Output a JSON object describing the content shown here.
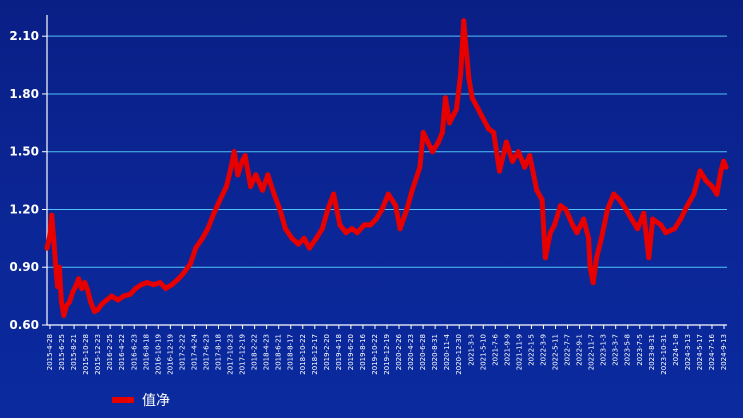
{
  "chart_data": {
    "type": "line",
    "series": [
      {
        "name": "值净",
        "color": "#e60000",
        "points": [
          [
            "2015-04-28",
            1.0
          ],
          [
            "2015-05-10",
            1.05
          ],
          [
            "2015-05-22",
            1.17
          ],
          [
            "2015-06-01",
            1.05
          ],
          [
            "2015-06-10",
            0.92
          ],
          [
            "2015-06-20",
            0.8
          ],
          [
            "2015-06-30",
            0.9
          ],
          [
            "2015-07-10",
            0.72
          ],
          [
            "2015-07-22",
            0.65
          ],
          [
            "2015-08-05",
            0.7
          ],
          [
            "2015-08-20",
            0.72
          ],
          [
            "2015-09-05",
            0.77
          ],
          [
            "2015-09-20",
            0.8
          ],
          [
            "2015-10-05",
            0.84
          ],
          [
            "2015-10-20",
            0.79
          ],
          [
            "2015-11-05",
            0.82
          ],
          [
            "2015-11-20",
            0.78
          ],
          [
            "2015-12-05",
            0.72
          ],
          [
            "2015-12-25",
            0.67
          ],
          [
            "2016-01-10",
            0.68
          ],
          [
            "2016-02-01",
            0.71
          ],
          [
            "2016-02-25",
            0.73
          ],
          [
            "2016-03-20",
            0.75
          ],
          [
            "2016-04-22",
            0.73
          ],
          [
            "2016-05-20",
            0.75
          ],
          [
            "2016-06-23",
            0.76
          ],
          [
            "2016-07-20",
            0.79
          ],
          [
            "2016-08-18",
            0.81
          ],
          [
            "2016-09-15",
            0.82
          ],
          [
            "2016-10-19",
            0.81
          ],
          [
            "2016-11-20",
            0.82
          ],
          [
            "2016-12-19",
            0.79
          ],
          [
            "2017-01-20",
            0.81
          ],
          [
            "2017-02-22",
            0.84
          ],
          [
            "2017-03-20",
            0.87
          ],
          [
            "2017-04-24",
            0.92
          ],
          [
            "2017-05-20",
            1.0
          ],
          [
            "2017-06-23",
            1.05
          ],
          [
            "2017-07-20",
            1.1
          ],
          [
            "2017-08-20",
            1.18
          ],
          [
            "2017-09-20",
            1.25
          ],
          [
            "2017-10-23",
            1.32
          ],
          [
            "2017-11-15",
            1.42
          ],
          [
            "2017-12-01",
            1.5
          ],
          [
            "2017-12-19",
            1.38
          ],
          [
            "2018-01-10",
            1.45
          ],
          [
            "2018-01-25",
            1.48
          ],
          [
            "2018-02-22",
            1.32
          ],
          [
            "2018-03-20",
            1.38
          ],
          [
            "2018-04-23",
            1.3
          ],
          [
            "2018-05-20",
            1.38
          ],
          [
            "2018-06-21",
            1.28
          ],
          [
            "2018-07-20",
            1.2
          ],
          [
            "2018-08-17",
            1.1
          ],
          [
            "2018-09-20",
            1.05
          ],
          [
            "2018-10-22",
            1.02
          ],
          [
            "2018-11-20",
            1.05
          ],
          [
            "2018-12-17",
            1.0
          ],
          [
            "2019-01-20",
            1.05
          ],
          [
            "2019-02-20",
            1.1
          ],
          [
            "2019-03-20",
            1.2
          ],
          [
            "2019-04-18",
            1.28
          ],
          [
            "2019-05-20",
            1.12
          ],
          [
            "2019-06-20",
            1.08
          ],
          [
            "2019-07-20",
            1.1
          ],
          [
            "2019-08-16",
            1.08
          ],
          [
            "2019-09-20",
            1.12
          ],
          [
            "2019-10-22",
            1.12
          ],
          [
            "2019-11-20",
            1.15
          ],
          [
            "2019-12-19",
            1.2
          ],
          [
            "2020-01-20",
            1.28
          ],
          [
            "2020-02-26",
            1.22
          ],
          [
            "2020-03-20",
            1.1
          ],
          [
            "2020-04-23",
            1.2
          ],
          [
            "2020-05-20",
            1.3
          ],
          [
            "2020-06-28",
            1.42
          ],
          [
            "2020-07-15",
            1.6
          ],
          [
            "2020-08-31",
            1.5
          ],
          [
            "2020-09-30",
            1.55
          ],
          [
            "2020-10-20",
            1.6
          ],
          [
            "2020-11-04",
            1.78
          ],
          [
            "2020-11-25",
            1.65
          ],
          [
            "2020-12-30",
            1.72
          ],
          [
            "2021-01-20",
            1.9
          ],
          [
            "2021-02-05",
            2.18
          ],
          [
            "2021-02-20",
            2.0
          ],
          [
            "2021-03-03",
            1.88
          ],
          [
            "2021-03-20",
            1.78
          ],
          [
            "2021-04-20",
            1.72
          ],
          [
            "2021-05-10",
            1.68
          ],
          [
            "2021-06-10",
            1.62
          ],
          [
            "2021-07-06",
            1.6
          ],
          [
            "2021-08-05",
            1.4
          ],
          [
            "2021-09-09",
            1.55
          ],
          [
            "2021-10-10",
            1.45
          ],
          [
            "2021-11-09",
            1.5
          ],
          [
            "2021-12-10",
            1.42
          ],
          [
            "2022-01-05",
            1.48
          ],
          [
            "2022-02-10",
            1.3
          ],
          [
            "2022-03-09",
            1.25
          ],
          [
            "2022-03-25",
            0.95
          ],
          [
            "2022-04-20",
            1.08
          ],
          [
            "2022-05-11",
            1.12
          ],
          [
            "2022-06-10",
            1.22
          ],
          [
            "2022-07-07",
            1.2
          ],
          [
            "2022-08-10",
            1.12
          ],
          [
            "2022-09-01",
            1.08
          ],
          [
            "2022-10-05",
            1.15
          ],
          [
            "2022-10-30",
            1.05
          ],
          [
            "2022-11-07",
            0.9
          ],
          [
            "2022-11-22",
            0.82
          ],
          [
            "2022-12-10",
            0.95
          ],
          [
            "2023-01-03",
            1.05
          ],
          [
            "2023-02-03",
            1.2
          ],
          [
            "2023-03-07",
            1.28
          ],
          [
            "2023-04-05",
            1.25
          ],
          [
            "2023-05-08",
            1.2
          ],
          [
            "2023-06-05",
            1.15
          ],
          [
            "2023-07-05",
            1.1
          ],
          [
            "2023-08-05",
            1.18
          ],
          [
            "2023-08-31",
            0.95
          ],
          [
            "2023-09-20",
            1.15
          ],
          [
            "2023-10-31",
            1.12
          ],
          [
            "2023-11-25",
            1.08
          ],
          [
            "2024-01-08",
            1.1
          ],
          [
            "2024-02-08",
            1.15
          ],
          [
            "2024-03-13",
            1.22
          ],
          [
            "2024-04-15",
            1.28
          ],
          [
            "2024-05-17",
            1.4
          ],
          [
            "2024-06-15",
            1.35
          ],
          [
            "2024-07-16",
            1.32
          ],
          [
            "2024-08-10",
            1.28
          ],
          [
            "2024-08-30",
            1.4
          ],
          [
            "2024-09-13",
            1.45
          ],
          [
            "2024-09-25",
            1.42
          ]
        ]
      }
    ],
    "y_ticks": [
      "0.60",
      "0.90",
      "1.20",
      "1.50",
      "1.80",
      "2.10"
    ],
    "ylim": [
      0.6,
      2.21
    ],
    "xlim": [
      "2015-04-28",
      "2024-09-30"
    ],
    "x_ticks": [
      "2015-4-28",
      "2015-6-25",
      "2015-8-21",
      "2015-10-28",
      "2015-12-23",
      "2016-2-25",
      "2016-4-22",
      "2016-6-23",
      "2016-8-18",
      "2016-10-19",
      "2016-12-19",
      "2017-2-22",
      "2017-4-24",
      "2017-6-23",
      "2017-8-18",
      "2017-10-23",
      "2017-12-19",
      "2018-2-22",
      "2018-4-23",
      "2018-6-21",
      "2018-8-17",
      "2018-10-22",
      "2018-12-17",
      "2019-2-20",
      "2019-4-18",
      "2019-6-20",
      "2019-8-16",
      "2019-10-22",
      "2019-12-19",
      "2020-2-26",
      "2020-4-23",
      "2020-6-28",
      "2020-8-31",
      "2020-11-4",
      "2020-12-30",
      "2021-3-3",
      "2021-5-10",
      "2021-7-6",
      "2021-9-9",
      "2021-11-9",
      "2022-1-5",
      "2022-3-9",
      "2022-5-11",
      "2022-7-7",
      "2022-9-1",
      "2022-11-7",
      "2023-1-3",
      "2023-3-7",
      "2023-5-8",
      "2023-7-5",
      "2023-8-31",
      "2023-10-31",
      "2024-1-8",
      "2024-3-13",
      "2024-5-17",
      "2024-7-16",
      "2024-9-13"
    ],
    "grid": true,
    "legend_position": "bottom-left"
  },
  "colors": {
    "background_top": "#0a1f86",
    "background_bottom": "#0a2a9e",
    "gridline": "#4fc3f7",
    "axis": "#ffffff",
    "line": "#e60000"
  }
}
